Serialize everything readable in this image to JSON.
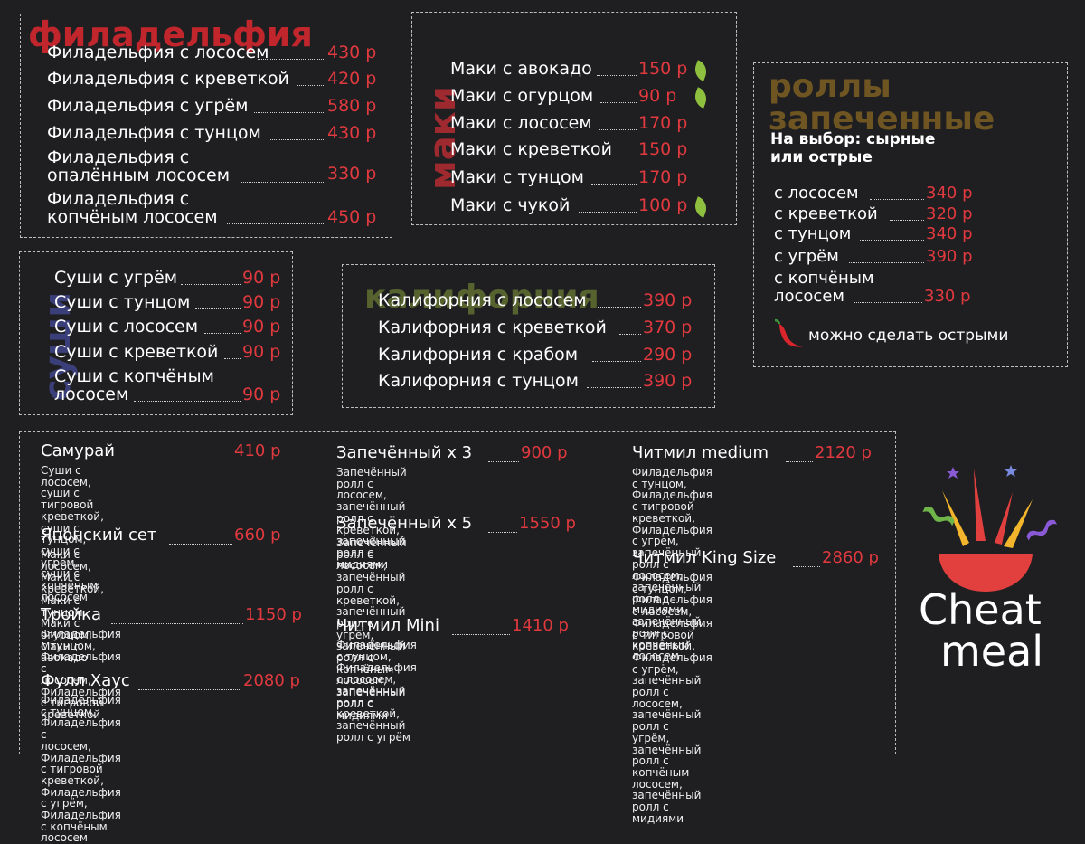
{
  "colors": {
    "background": "#1f1f22",
    "price": "#e0393e",
    "leaf": "#8fbf3f"
  },
  "philadelphia": {
    "heading": "филадельфия",
    "items": [
      {
        "name": "Филадельфия с лососем",
        "price": "430 р"
      },
      {
        "name": "Филадельфия с креветкой",
        "price": "420 р"
      },
      {
        "name": "Филадельфия с угрём",
        "price": "580 р"
      },
      {
        "name": "Филадельфия с тунцом",
        "price": "430 р"
      },
      {
        "name_line1": "Филадельфия с",
        "name_line2": "опалённым лососем",
        "price": "330 р"
      },
      {
        "name_line1": "Филадельфия с",
        "name_line2": "копчёным лососем",
        "price": "450 р"
      }
    ]
  },
  "maki": {
    "heading": "маки",
    "items": [
      {
        "name": "Маки с авокадо",
        "price": "150 р",
        "icon": "leaf-icon"
      },
      {
        "name": "Маки с огурцом",
        "price": "90 р",
        "icon": "leaf-icon"
      },
      {
        "name": "Маки с лососем",
        "price": "170 р"
      },
      {
        "name": "Маки с креветкой",
        "price": "150 р"
      },
      {
        "name": "Маки с тунцом",
        "price": "170 р"
      },
      {
        "name": "Маки с чукой",
        "price": "100 р",
        "icon": "leaf-icon"
      }
    ]
  },
  "baked": {
    "heading_line1": "роллы",
    "heading_line2": "запеченные",
    "subtitle_line1": "На выбор: сырные",
    "subtitle_line2": "или острые",
    "items": [
      {
        "name": "с лососем",
        "price": "340 р"
      },
      {
        "name": "с креветкой",
        "price": "320 р"
      },
      {
        "name": "с тунцом",
        "price": "340 р"
      },
      {
        "name": "с угрём",
        "price": "390 р"
      },
      {
        "name_line1": "с копчёным",
        "name_line2": "лососем",
        "price": "330 р"
      }
    ],
    "spicy_note": "можно сделать острыми",
    "spicy_icon": "chili-pepper-icon"
  },
  "sushi": {
    "heading": "суши",
    "items": [
      {
        "name": "Суши с угрём",
        "price": "90 р"
      },
      {
        "name": "Суши с тунцом",
        "price": "90 р"
      },
      {
        "name": "Суши с лососем",
        "price": "90 р"
      },
      {
        "name": "Суши с креветкой",
        "price": "90 р"
      },
      {
        "name_line1": "Суши с копчёным",
        "name_line2": "лососем",
        "price": "90 р"
      }
    ]
  },
  "california": {
    "heading": "калифорния",
    "items": [
      {
        "name": "Калифорния с лососем",
        "price": "390 р"
      },
      {
        "name": "Калифорния с креветкой",
        "price": "370 р"
      },
      {
        "name": "Калифорния с крабом",
        "price": "290 р"
      },
      {
        "name": "Калифорния с тунцом",
        "price": "390 р"
      }
    ]
  },
  "sets": {
    "col1": [
      {
        "title": "Самурай",
        "price": "410 р",
        "desc": [
          "Суши с лососем, суши с",
          "тигровой креветкой, суши с",
          "тунцом, суши с угрём, суши с",
          "копчёным лососем"
        ]
      },
      {
        "title": "Японский сет",
        "price": "660 р",
        "desc": [
          "Маки с лососем, Маки с",
          "креветкой, Маки с тунцом,",
          "Маки с огурцом, Маки с",
          "авокадо"
        ]
      },
      {
        "title": "Тройка",
        "price": "1150 р",
        "desc": [
          "Филадельфия с тунцом, Филадельфия с",
          "лососем, Филадельфия с тигровой",
          "креветкой"
        ]
      },
      {
        "title": "Фулл Хаус",
        "price": "2080 р",
        "desc": [
          "Филадельфия с тунцом, Филадельфия с",
          "лососем, Филадельфия с тигровой",
          "креветкой, Филадельфия с угрём,",
          "Филадельфия с копчёным лососем"
        ]
      }
    ],
    "col2": [
      {
        "title": "Запечённый х 3",
        "price": "900 р",
        "desc": [
          "Запечённый ролл с лососем,",
          "запечённый ролл с креветкой,",
          "запечённый ролл с мидиями"
        ]
      },
      {
        "title": "Запечённый х 5",
        "price": "1550 р",
        "desc": [
          "Запечённый ролл с лососем,",
          "запечённый ролл с креветкой,",
          "запечённый ролл с угрём,",
          "запечённый ролл с копчёным",
          "лососем, запечённый ролл с",
          "мидиями"
        ]
      },
      {
        "title": "Читмил Mini",
        "price": "1410 р",
        "desc": [
          "Филадельфия с тунцом,",
          "Филадельфия с лососем,",
          "запечённый ролл с креветкой,",
          "запечённый ролл с угрём"
        ]
      }
    ],
    "col3": [
      {
        "title": "Читмил medium",
        "price": "2120 р",
        "desc": [
          "Филадельфия с тунцом,",
          "Филадельфия с тигровой креветкой,",
          "Филадельфия с угрём, запечённый",
          "ролл с лососем, запечённый ролл с",
          "мидиями, запечённый ролл с",
          "копчёным лососем"
        ]
      },
      {
        "title": "Читмил King Size",
        "price": "2860 р",
        "desc": [
          "Филадельфия с тунцом,",
          "Филадельфия с лососем,",
          "Филадельфия с тигровой креветкой,",
          "Филадельфия с угрём, запечённый",
          "ролл с лососем, запечённый ролл с",
          "угрём, запечённый ролл с копчёным",
          "лососем, запечённый ролл с",
          "мидиями"
        ]
      }
    ]
  },
  "logo": {
    "line1": "Cheat",
    "line2": "meal",
    "icon": "bowl-confetti-icon"
  }
}
